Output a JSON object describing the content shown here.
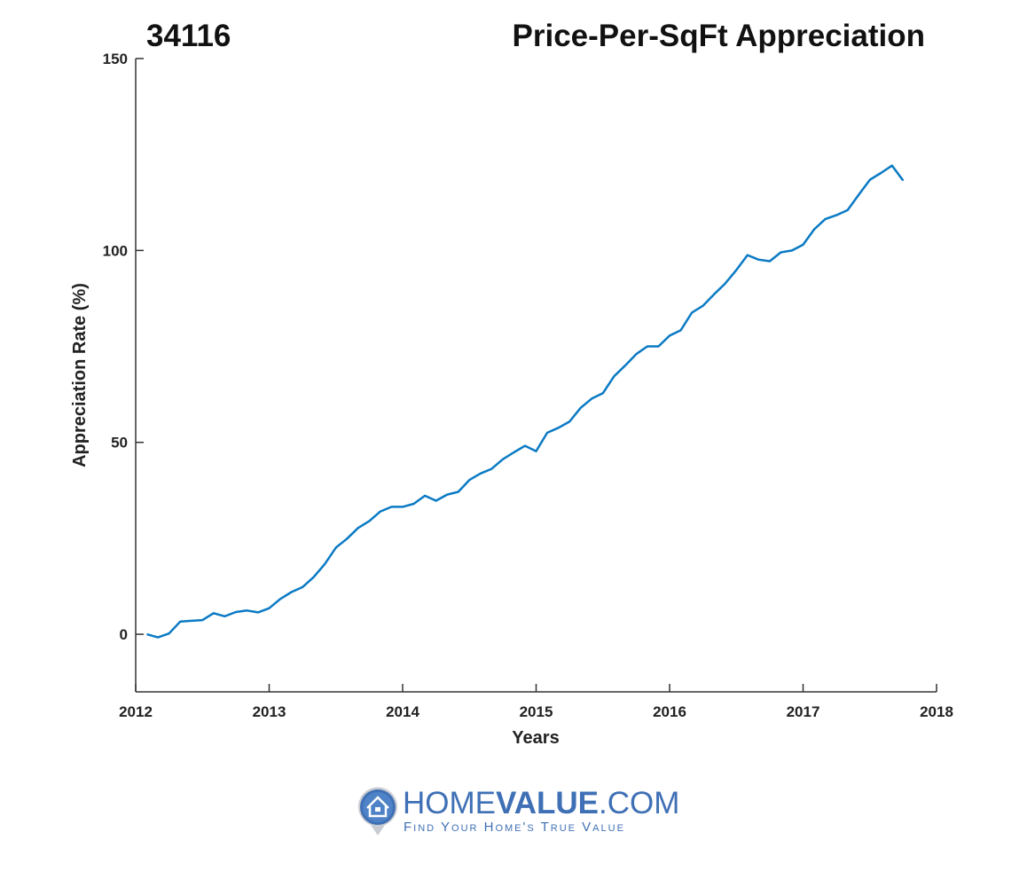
{
  "chart_data": {
    "type": "line",
    "title_left": "34116",
    "title": "Price-Per-SqFt Appreciation",
    "xlabel": "Years",
    "ylabel": "Appreciation Rate (%)",
    "xlim": [
      2012,
      2018
    ],
    "ylim": [
      -15,
      150
    ],
    "xticks": [
      "2012",
      "2013",
      "2014",
      "2015",
      "2016",
      "2017",
      "2018"
    ],
    "yticks": [
      "0",
      "50",
      "100",
      "150"
    ],
    "grid": false,
    "line_color": "#0a7ac4",
    "x": [
      "2012-02",
      "2012-03",
      "2012-04",
      "2012-05",
      "2012-06",
      "2012-07",
      "2012-08",
      "2012-09",
      "2012-10",
      "2012-11",
      "2012-12",
      "2013-01",
      "2013-02",
      "2013-03",
      "2013-04",
      "2013-05",
      "2013-06",
      "2013-07",
      "2013-08",
      "2013-09",
      "2013-10",
      "2013-11",
      "2013-12",
      "2014-01",
      "2014-02",
      "2014-03",
      "2014-04",
      "2014-05",
      "2014-06",
      "2014-07",
      "2014-08",
      "2014-09",
      "2014-10",
      "2014-11",
      "2014-12",
      "2015-01",
      "2015-02",
      "2015-03",
      "2015-04",
      "2015-05",
      "2015-06",
      "2015-07",
      "2015-08",
      "2015-09",
      "2015-10",
      "2015-11",
      "2015-12",
      "2016-01",
      "2016-02",
      "2016-03",
      "2016-04",
      "2016-05",
      "2016-06",
      "2016-07",
      "2016-08",
      "2016-09",
      "2016-10",
      "2016-11",
      "2016-12",
      "2017-01",
      "2017-02",
      "2017-03",
      "2017-04",
      "2017-05",
      "2017-06",
      "2017-07",
      "2017-08",
      "2017-09",
      "2017-10"
    ],
    "values": [
      0,
      -0.8,
      0.2,
      3.3,
      3.5,
      3.7,
      5.5,
      4.7,
      5.8,
      6.2,
      5.7,
      6.8,
      9.2,
      11,
      12.3,
      14.9,
      18.3,
      22.6,
      24.9,
      27.7,
      29.5,
      32,
      33.2,
      33.2,
      34,
      36.1,
      34.8,
      36.4,
      37.1,
      40.2,
      41.9,
      43.1,
      45.6,
      47.4,
      49.1,
      47.7,
      52.5,
      53.8,
      55.4,
      59,
      61.4,
      62.8,
      67.2,
      70,
      73,
      75,
      75,
      77.8,
      79.2,
      83.8,
      85.6,
      88.6,
      91.4,
      94.9,
      98.8,
      97.6,
      97.2,
      99.5,
      100,
      101.5,
      105.5,
      108.2,
      109.2,
      110.5,
      114.5,
      118.4,
      120.2,
      122.1,
      118.2
    ]
  },
  "logo": {
    "brand_light": "HOME",
    "brand_bold": "VALUE",
    "brand_suffix": ".COM",
    "tagline": "Find Your Home's True Value",
    "color": "#3f70b5"
  }
}
